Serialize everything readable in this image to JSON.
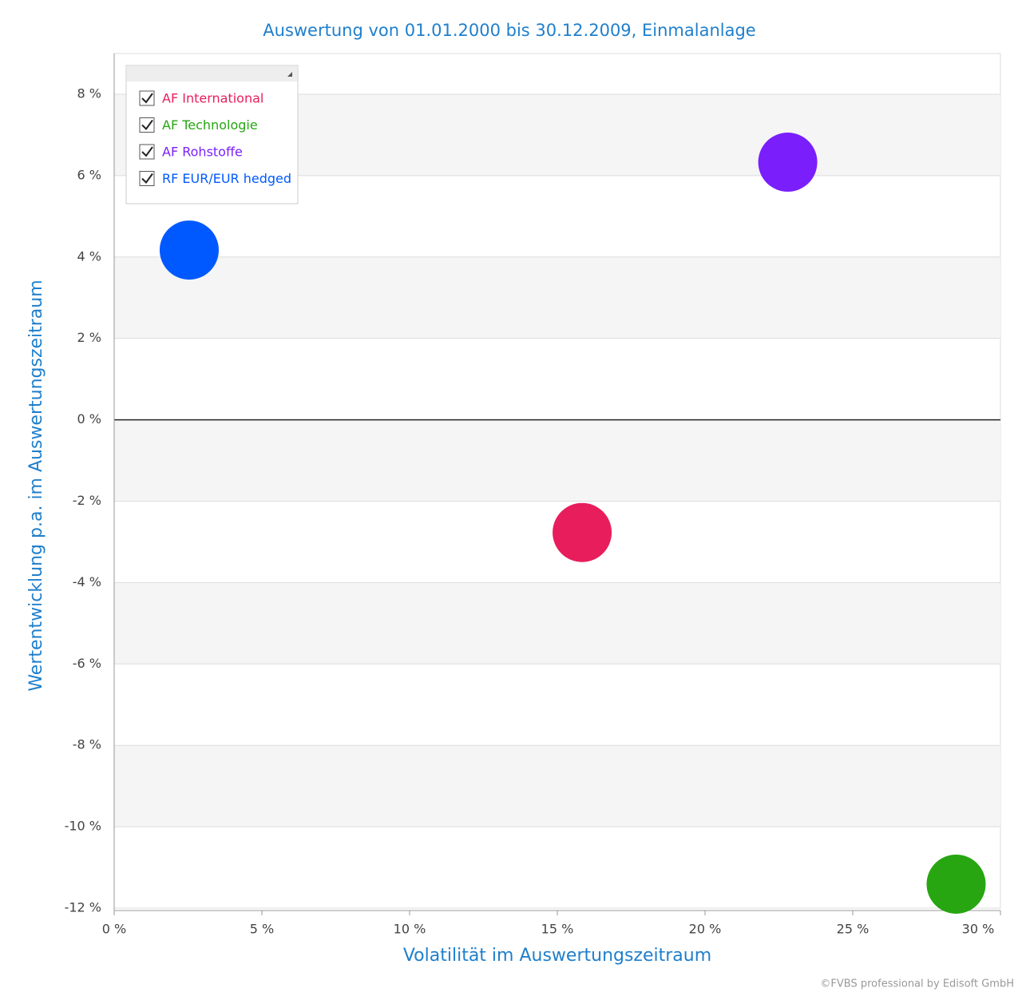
{
  "chart_data": {
    "type": "scatter",
    "title": "Auswertung von 01.01.2000 bis 30.12.2009, Einmalanlage",
    "x_label": "Volatilität im Auswertungszeitraum",
    "y_label": "Wertentwicklung p.a. im Auswertungszeitraum",
    "xlim": [
      0,
      30
    ],
    "ylim": [
      -12,
      9
    ],
    "xticks": [
      {
        "value": 0,
        "label": "0 %"
      },
      {
        "value": 5,
        "label": "5 %"
      },
      {
        "value": 10,
        "label": "10 %"
      },
      {
        "value": 15,
        "label": "15 %"
      },
      {
        "value": 20,
        "label": "20 %"
      },
      {
        "value": 25,
        "label": "25 %"
      },
      {
        "value": 30,
        "label": "30 %"
      }
    ],
    "yticks": [
      {
        "value": -12,
        "label": "-12 %"
      },
      {
        "value": -10,
        "label": "-10 %"
      },
      {
        "value": -8,
        "label": "-8 %"
      },
      {
        "value": -6,
        "label": "-6 %"
      },
      {
        "value": -4,
        "label": "-4 %"
      },
      {
        "value": -2,
        "label": "-2 %"
      },
      {
        "value": 0,
        "label": "0 %"
      },
      {
        "value": 2,
        "label": "2 %"
      },
      {
        "value": 4,
        "label": "4 %"
      },
      {
        "value": 6,
        "label": "6 %"
      },
      {
        "value": 8,
        "label": "8 %"
      }
    ],
    "grid": true,
    "legend": "upper left",
    "series": [
      {
        "name": "AF International",
        "color": "#e81e5c",
        "x": [
          15.84
        ],
        "values": [
          -2.77
        ]
      },
      {
        "name": "AF Technologie",
        "color": "#27a612",
        "x": [
          28.5
        ],
        "values": [
          -11.41
        ]
      },
      {
        "name": "AF Rohstoffe",
        "color": "#7a1ffc",
        "x": [
          22.8
        ],
        "values": [
          6.33
        ]
      },
      {
        "name": "RF EUR/EUR hedged",
        "color": "#0059ff",
        "x": [
          2.54
        ],
        "values": [
          4.17
        ]
      }
    ],
    "footer": "©FVBS professional by Edisoft GmbH"
  }
}
